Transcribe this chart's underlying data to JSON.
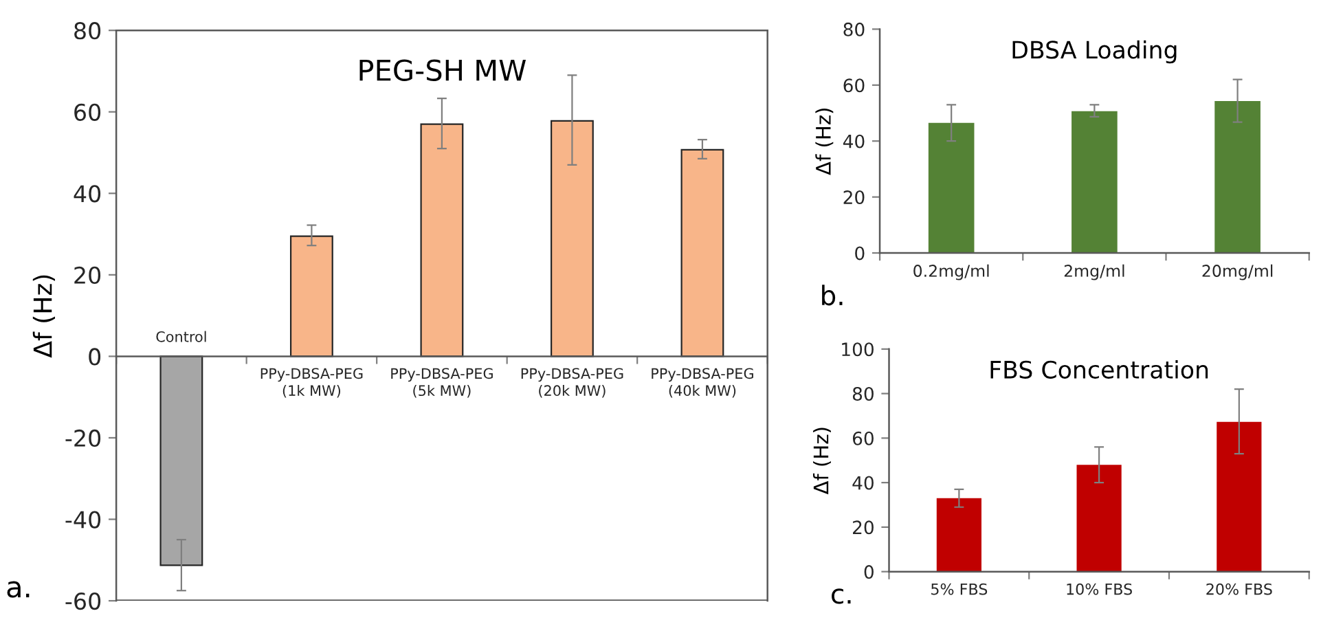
{
  "chart_data": [
    {
      "type": "bar",
      "title": "PEG-SH MW",
      "ylabel": "Δf (Hz)",
      "categories": [
        "Control",
        "PPy-DBSA-PEG\n(1k MW)",
        "PPy-DBSA-PEG\n(5k MW)",
        "PPy-DBSA-PEG\n(20k MW)",
        "PPy-DBSA-PEG\n(40k MW)"
      ],
      "values": [
        -51.3,
        29.5,
        57,
        57.8,
        50.7
      ],
      "colors": [
        "#a6a6a6",
        "#f8b589",
        "#f8b589",
        "#f8b589",
        "#f8b589"
      ],
      "errors": [
        [
          -57.5,
          -45
        ],
        [
          27.2,
          32.2
        ],
        [
          51,
          63.3
        ],
        [
          47,
          69
        ],
        [
          48.5,
          53.2
        ]
      ],
      "ylim": [
        -60,
        80
      ],
      "yticks": [
        -60,
        -40,
        -20,
        0,
        20,
        40,
        60,
        80
      ],
      "grid": false,
      "annotations": [
        "a."
      ]
    },
    {
      "type": "bar",
      "title": "DBSA Loading",
      "ylabel": "Δf (Hz)",
      "categories": [
        "0.2mg/ml",
        "2mg/ml",
        "20mg/ml"
      ],
      "values": [
        46.5,
        50.7,
        54.3
      ],
      "colors": [
        "#548235",
        "#548235",
        "#548235"
      ],
      "errors": [
        [
          40,
          53
        ],
        [
          48.7,
          53
        ],
        [
          46.8,
          62
        ]
      ],
      "ylim": [
        0,
        80
      ],
      "yticks": [
        0,
        20,
        40,
        60,
        80
      ],
      "grid": false,
      "annotations": [
        "b."
      ]
    },
    {
      "type": "bar",
      "title": "FBS Concentration",
      "ylabel": "Δf (Hz)",
      "categories": [
        "5% FBS",
        "10% FBS",
        "20% FBS"
      ],
      "values": [
        33,
        48,
        67.3
      ],
      "colors": [
        "#c00000",
        "#c00000",
        "#c00000"
      ],
      "errors": [
        [
          29,
          37
        ],
        [
          40,
          56
        ],
        [
          53,
          82
        ]
      ],
      "ylim": [
        0,
        100
      ],
      "yticks": [
        0,
        20,
        40,
        60,
        80,
        100
      ],
      "grid": false,
      "annotations": [
        "c."
      ]
    }
  ]
}
